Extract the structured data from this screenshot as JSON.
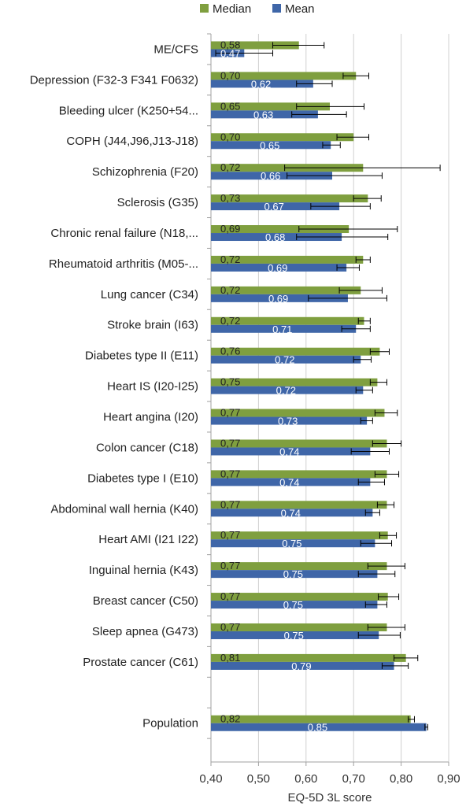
{
  "chart_data": {
    "type": "bar",
    "orientation": "horizontal",
    "title": "",
    "xlabel": "EQ-5D 3L score",
    "ylabel": "",
    "xlim": [
      0.4,
      0.9
    ],
    "x_ticks": [
      "0,40",
      "0,50",
      "0,60",
      "0,70",
      "0,80",
      "0,90"
    ],
    "grid": true,
    "legend_position": "top",
    "categories": [
      "ME/CFS",
      "Depression (F32-3 F341 F0632)",
      "Bleeding ulcer (K250+54...",
      "COPH (J44,J96,J13-J18)",
      "Schizophrenia (F20)",
      "Sclerosis (G35)",
      "Chronic renal failure (N18,...",
      "Rheumatoid arthritis (M05-...",
      "Lung cancer (C34)",
      "Stroke brain (I63)",
      "Diabetes type II (E11)",
      "Heart IS (I20-I25)",
      "Heart angina (I20)",
      "Colon cancer (C18)",
      "Diabetes type I (E10)",
      "Abdominal wall hernia (K40)",
      "Heart AMI  (I21 I22)",
      "Inguinal hernia (K43)",
      "Breast cancer (C50)",
      "Sleep apnea (G473)",
      "Prostate cancer (C61)",
      "",
      "Population"
    ],
    "series": [
      {
        "name": "Median",
        "color": "#7f9f3f",
        "values": [
          0.585,
          0.705,
          0.65,
          0.7,
          0.72,
          0.73,
          0.69,
          0.72,
          0.715,
          0.722,
          0.755,
          0.75,
          0.765,
          0.77,
          0.77,
          0.77,
          0.772,
          0.77,
          0.772,
          0.77,
          0.81,
          null,
          0.82
        ],
        "labels": [
          "0,58",
          "0,70",
          "0,65",
          "0,70",
          "0,72",
          "0,73",
          "0,69",
          "0,72",
          "0,72",
          "0,72",
          "0,76",
          "0,75",
          "0,77",
          "0,77",
          "0,77",
          "0,77",
          "0,77",
          "0,77",
          "0,77",
          "0,77",
          "0,81",
          "",
          "0,82"
        ],
        "error": [
          [
            0.53,
            0.638
          ],
          [
            0.678,
            0.732
          ],
          [
            0.58,
            0.722
          ],
          [
            0.665,
            0.732
          ],
          [
            0.555,
            0.882
          ],
          [
            0.7,
            0.758
          ],
          [
            0.585,
            0.792
          ],
          [
            0.705,
            0.735
          ],
          [
            0.67,
            0.76
          ],
          [
            0.71,
            0.735
          ],
          [
            0.735,
            0.775
          ],
          [
            0.735,
            0.77
          ],
          [
            0.745,
            0.792
          ],
          [
            0.74,
            0.8
          ],
          [
            0.745,
            0.795
          ],
          [
            0.75,
            0.785
          ],
          [
            0.755,
            0.79
          ],
          [
            0.73,
            0.808
          ],
          [
            0.752,
            0.795
          ],
          [
            0.73,
            0.808
          ],
          [
            0.785,
            0.835
          ],
          null,
          [
            0.815,
            0.828
          ]
        ]
      },
      {
        "name": "Mean",
        "color": "#3f66a8",
        "values": [
          0.47,
          0.615,
          0.625,
          0.652,
          0.655,
          0.67,
          0.675,
          0.685,
          0.688,
          0.705,
          0.715,
          0.72,
          0.728,
          0.735,
          0.735,
          0.74,
          0.745,
          0.75,
          0.75,
          0.753,
          0.785,
          null,
          0.853
        ],
        "labels": [
          "0,47",
          "0,62",
          "0,63",
          "0,65",
          "0,66",
          "0,67",
          "0,68",
          "0,69",
          "0,69",
          "0,71",
          "0,72",
          "0,72",
          "0,73",
          "0,74",
          "0,74",
          "0,74",
          "0,75",
          "0,75",
          "0,75",
          "0,75",
          "0,79",
          "",
          "0,85"
        ],
        "error": [
          [
            0.41,
            0.53
          ],
          [
            0.58,
            0.655
          ],
          [
            0.57,
            0.685
          ],
          [
            0.635,
            0.672
          ],
          [
            0.56,
            0.76
          ],
          [
            0.61,
            0.735
          ],
          [
            0.58,
            0.772
          ],
          [
            0.665,
            0.712
          ],
          [
            0.605,
            0.77
          ],
          [
            0.675,
            0.735
          ],
          [
            0.7,
            0.737
          ],
          [
            0.705,
            0.74
          ],
          [
            0.715,
            0.74
          ],
          [
            0.695,
            0.775
          ],
          [
            0.71,
            0.765
          ],
          [
            0.725,
            0.755
          ],
          [
            0.715,
            0.78
          ],
          [
            0.71,
            0.787
          ],
          [
            0.725,
            0.77
          ],
          [
            0.71,
            0.798
          ],
          [
            0.76,
            0.815
          ],
          null,
          [
            0.85,
            0.856
          ]
        ]
      }
    ]
  }
}
